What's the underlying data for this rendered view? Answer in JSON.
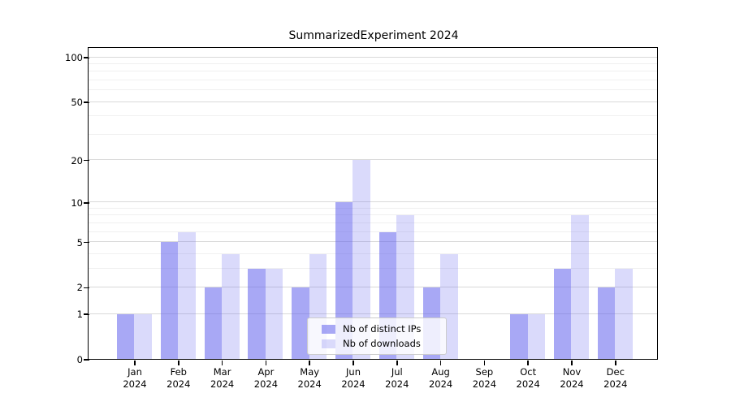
{
  "chart_data": {
    "type": "bar",
    "title": "SummarizedExperiment 2024",
    "categories": [
      {
        "month": "Jan",
        "year": "2024"
      },
      {
        "month": "Feb",
        "year": "2024"
      },
      {
        "month": "Mar",
        "year": "2024"
      },
      {
        "month": "Apr",
        "year": "2024"
      },
      {
        "month": "May",
        "year": "2024"
      },
      {
        "month": "Jun",
        "year": "2024"
      },
      {
        "month": "Jul",
        "year": "2024"
      },
      {
        "month": "Aug",
        "year": "2024"
      },
      {
        "month": "Sep",
        "year": "2024"
      },
      {
        "month": "Oct",
        "year": "2024"
      },
      {
        "month": "Nov",
        "year": "2024"
      },
      {
        "month": "Dec",
        "year": "2024"
      }
    ],
    "series": [
      {
        "name": "Nb of distinct IPs",
        "values": [
          1,
          5,
          2,
          3,
          2,
          10,
          6,
          2,
          0,
          1,
          3,
          2
        ]
      },
      {
        "name": "Nb of downloads",
        "values": [
          1,
          6,
          4,
          3,
          4,
          20,
          8,
          4,
          0,
          1,
          8,
          3
        ]
      }
    ],
    "yscale": "log1p",
    "ylim": [
      0,
      115
    ],
    "ytick_labels": [
      "100",
      "50",
      "20",
      "10",
      "5",
      "2",
      "1",
      "0"
    ],
    "yticks": [
      100,
      50,
      20,
      10,
      5,
      2,
      1,
      0
    ],
    "minor_grid_values": [
      3,
      4,
      6,
      7,
      8,
      9,
      30,
      40,
      60,
      70,
      80,
      90
    ],
    "xlabel": "",
    "ylabel": "",
    "grid": true,
    "legend_position": "lower center"
  },
  "colors": {
    "distinct_ips_bar": "rgba(99,99,238,0.56)",
    "downloads_bar": "rgba(99,99,238,0.24)",
    "major_grid": "#d9d9d9",
    "minor_grid": "#f0f0f0",
    "axis": "#000000",
    "legend_border": "#cccccc",
    "legend_background": "rgba(255,255,255,0.8)"
  }
}
